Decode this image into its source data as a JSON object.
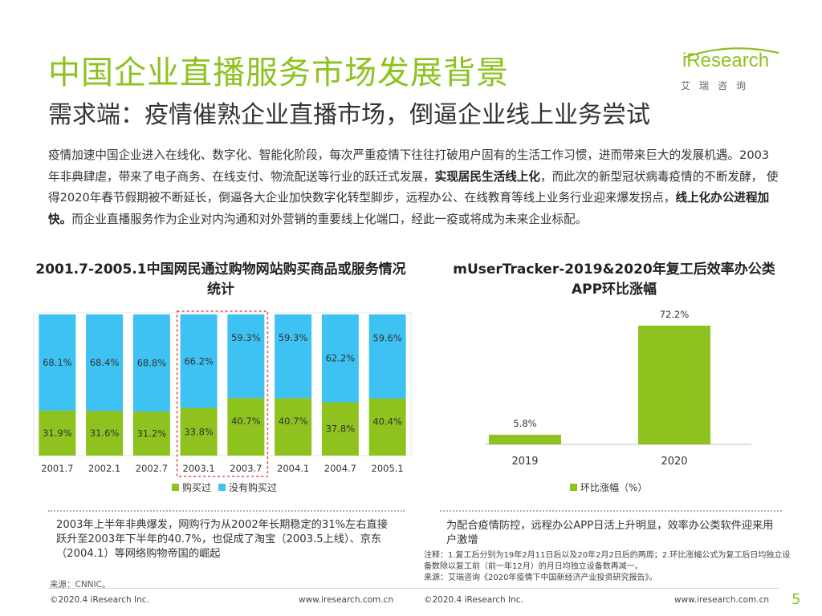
{
  "header": {
    "title": "中国企业直播服务市场发展背景",
    "subtitle": "需求端：疫情催熟企业直播市场，倒逼企业线上业务尝试",
    "logo_text": "iResearch",
    "logo_cn": "艾瑞咨询"
  },
  "intro": {
    "p1": "疫情加速中国企业进入在线化、数字化、智能化阶段，每次严重疫情下往往打破用户固有的生活工作习惯，进而带来巨大的发展机遇。2003年非典肆虐，带来了电子商务、在线支付、物流配送等行业的跃迁式发展，",
    "b1": "实现居民生活线上化",
    "p2": "，而此次的新型冠状病毒疫情的不断发酵， 使得2020年春节假期被不断延长，倒逼各大企业加快数字化转型脚步，远程办公、在线教育等线上业务行业迎来爆发拐点，",
    "b2": "线上化办公进程加快。",
    "p3": "而企业直播服务作为企业对内沟通和对外营销的重要线上化端口，经此一疫或将成为未来企业标配。"
  },
  "chart_data": [
    {
      "type": "bar",
      "stacked": true,
      "title": "2001.7-2005.1中国网民通过购物网站购买商品或服务情况统计",
      "categories": [
        "2001.7",
        "2002.1",
        "2002.7",
        "2003.1",
        "2003.7",
        "2004.1",
        "2004.7",
        "2005.1"
      ],
      "series": [
        {
          "name": "购买过",
          "values": [
            31.9,
            31.6,
            31.2,
            33.8,
            40.7,
            40.7,
            37.8,
            40.4
          ],
          "labels": [
            "31.9%",
            "31.6%",
            "31.2%",
            "33.8%",
            "40.7%",
            "40.7%",
            "37.8%",
            "40.4%"
          ],
          "color": "#8dc21f"
        },
        {
          "name": "没有购买过",
          "values": [
            68.1,
            68.4,
            68.8,
            66.2,
            59.3,
            59.3,
            62.2,
            59.6
          ],
          "labels": [
            "68.1%",
            "68.4%",
            "68.8%",
            "66.2%",
            "59.3%",
            "59.3%",
            "62.2%",
            "59.6%"
          ],
          "color": "#3ec1f3"
        }
      ],
      "ylim": [
        0,
        100
      ],
      "highlight_categories": [
        "2003.1",
        "2003.7"
      ]
    },
    {
      "type": "bar",
      "title": "mUserTracker-2019&2020年复工后效率办公类APP环比涨幅",
      "categories": [
        "2019",
        "2020"
      ],
      "series": [
        {
          "name": "环比涨幅（%）",
          "values": [
            5.8,
            72.2
          ],
          "labels": [
            "5.8%",
            "72.2%"
          ],
          "color": "#8dc21f"
        }
      ],
      "ylim": [
        0,
        72.2
      ]
    }
  ],
  "notes": {
    "left": "2003年上半年非典爆发，网购行为从2002年长期稳定的31%左右直接跃升至2003年下半年的40.7%，也促成了淘宝（2003.5上线）、京东（2004.1）等网络购物帝国的崛起",
    "right": "为配合疫情防控，远程办公APP日活上升明显，效率办公类软件迎来用户激增",
    "footnote_note": "注释：1.复工后分别为19年2月11日后以及20年2月2日后的两周；2.环比涨幅公式为复工后日均独立设备数除以复工前（前一年12月）的月日均独立设备数再减一。",
    "footnote_source": "来源：艾瑞咨询《2020年疫情下中国新经济产业投资研究报告》。",
    "source_left": "来源：CNNIC。"
  },
  "footer": {
    "copyright": "©2020.4 iResearch Inc.",
    "website": "www.iresearch.com.cn",
    "page": "5"
  }
}
